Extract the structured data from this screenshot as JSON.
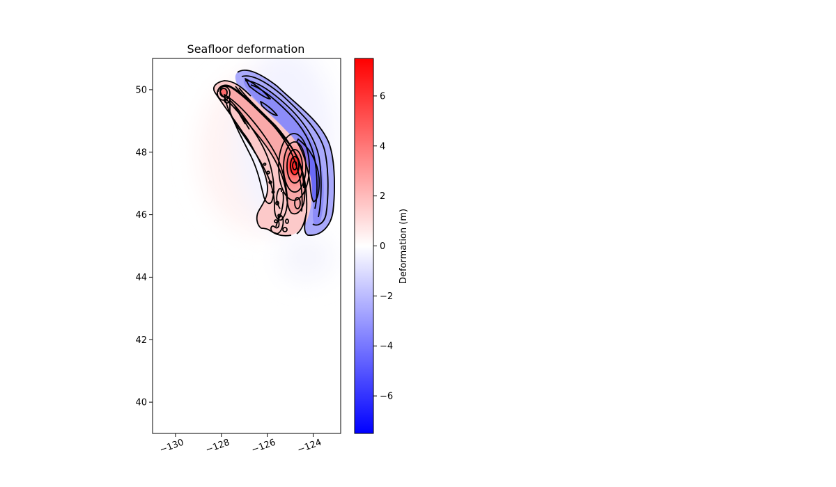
{
  "chart_data": {
    "type": "heatmap",
    "title": "Seafloor deformation",
    "xlabel": "",
    "ylabel": "",
    "xlim": [
      -131,
      -122.8
    ],
    "ylim": [
      39,
      51
    ],
    "xticks": [
      -130,
      -128,
      -126,
      -124
    ],
    "xtick_labels": [
      "−130",
      "−128",
      "−126",
      "−124"
    ],
    "yticks": [
      40,
      42,
      44,
      46,
      48,
      50
    ],
    "ytick_labels": [
      "40",
      "42",
      "44",
      "46",
      "48",
      "50"
    ],
    "colorbar": {
      "label": "Deformation (m)",
      "range": [
        -7.5,
        7.5
      ],
      "ticks": [
        -6,
        -4,
        -2,
        0,
        2,
        4,
        6
      ],
      "tick_labels": [
        "−6",
        "−4",
        "−2",
        "0",
        "2",
        "4",
        "6"
      ],
      "colormap": "bwr",
      "colors": {
        "low": "#0000ff",
        "mid": "#ffffff",
        "high": "#ff0000"
      }
    },
    "uplift_peak": {
      "lon": -124.6,
      "lat": 47.6,
      "value": 7.0
    },
    "subsidence_peak": {
      "lon": -124.0,
      "lat": 47.6,
      "value": -5.0
    },
    "contour_color": "#000000",
    "grid": false
  }
}
